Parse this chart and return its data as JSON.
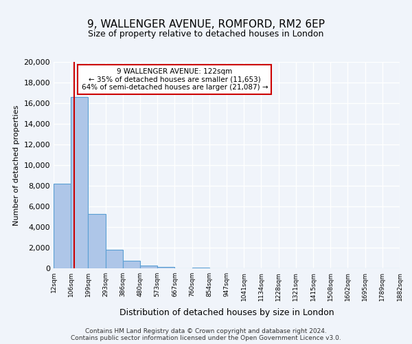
{
  "title1": "9, WALLENGER AVENUE, ROMFORD, RM2 6EP",
  "title2": "Size of property relative to detached houses in London",
  "xlabel": "Distribution of detached houses by size in London",
  "ylabel": "Number of detached properties",
  "bin_labels": [
    "12sqm",
    "106sqm",
    "199sqm",
    "293sqm",
    "386sqm",
    "480sqm",
    "573sqm",
    "667sqm",
    "760sqm",
    "854sqm",
    "947sqm",
    "1041sqm",
    "1134sqm",
    "1228sqm",
    "1321sqm",
    "1415sqm",
    "1508sqm",
    "1602sqm",
    "1695sqm",
    "1789sqm",
    "1882sqm"
  ],
  "bar_values": [
    8200,
    16600,
    5300,
    1800,
    750,
    300,
    130,
    0,
    100,
    0,
    0,
    0,
    0,
    0,
    0,
    0,
    0,
    0,
    0,
    0
  ],
  "bar_color": "#aec6e8",
  "bar_edge_color": "#5a9fd4",
  "property_line_x": 1,
  "property_line_label": "9 WALLENGER AVENUE: 122sqm",
  "pct_smaller": 35,
  "n_smaller": 11653,
  "pct_larger": 64,
  "n_larger": 21087,
  "annotation_box_edge": "#cc0000",
  "vline_color": "#cc0000",
  "ylim": [
    0,
    20000
  ],
  "yticks": [
    0,
    2000,
    4000,
    6000,
    8000,
    10000,
    12000,
    14000,
    16000,
    18000,
    20000
  ],
  "footer1": "Contains HM Land Registry data © Crown copyright and database right 2024.",
  "footer2": "Contains public sector information licensed under the Open Government Licence v3.0.",
  "bg_color": "#f0f4fa",
  "plot_bg_color": "#f0f4fa"
}
